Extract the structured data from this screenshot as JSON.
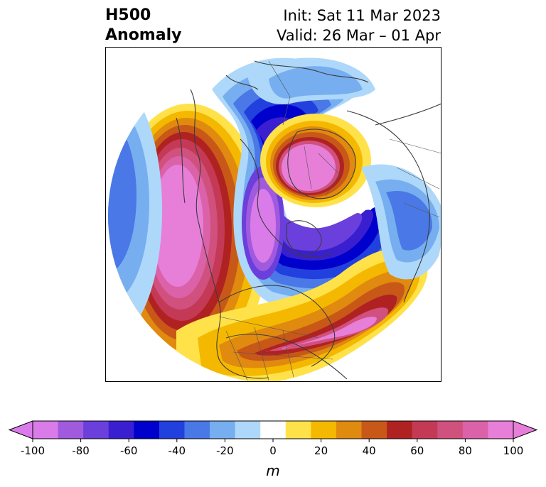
{
  "title": {
    "left_line1": "H500",
    "left_line2": "Anomaly",
    "right_line1": "Init: Sat 11 Mar 2023",
    "right_line2": "Valid: 26 Mar – 01 Apr"
  },
  "colorbar": {
    "unit": "m",
    "ticks": [
      "-100",
      "-80",
      "-60",
      "-40",
      "-20",
      "0",
      "20",
      "40",
      "60",
      "80",
      "100"
    ],
    "colors": [
      "#d97be8",
      "#a05ade",
      "#6a3fdc",
      "#3a1fd0",
      "#0000cc",
      "#2240dd",
      "#4a78e6",
      "#76aef0",
      "#aed8fa",
      "#ffffff",
      "#ffe24a",
      "#f5b800",
      "#e08a10",
      "#c85818",
      "#b02222",
      "#c43a56",
      "#d0507e",
      "#db62a8",
      "#e77fd8"
    ],
    "under_color": "#d97be8",
    "over_color": "#e77fd8"
  },
  "map": {
    "projection": "north-polar-stereographic",
    "features": [
      "H500 anomaly contours",
      "coastlines",
      "country borders",
      "US state boundaries"
    ]
  }
}
